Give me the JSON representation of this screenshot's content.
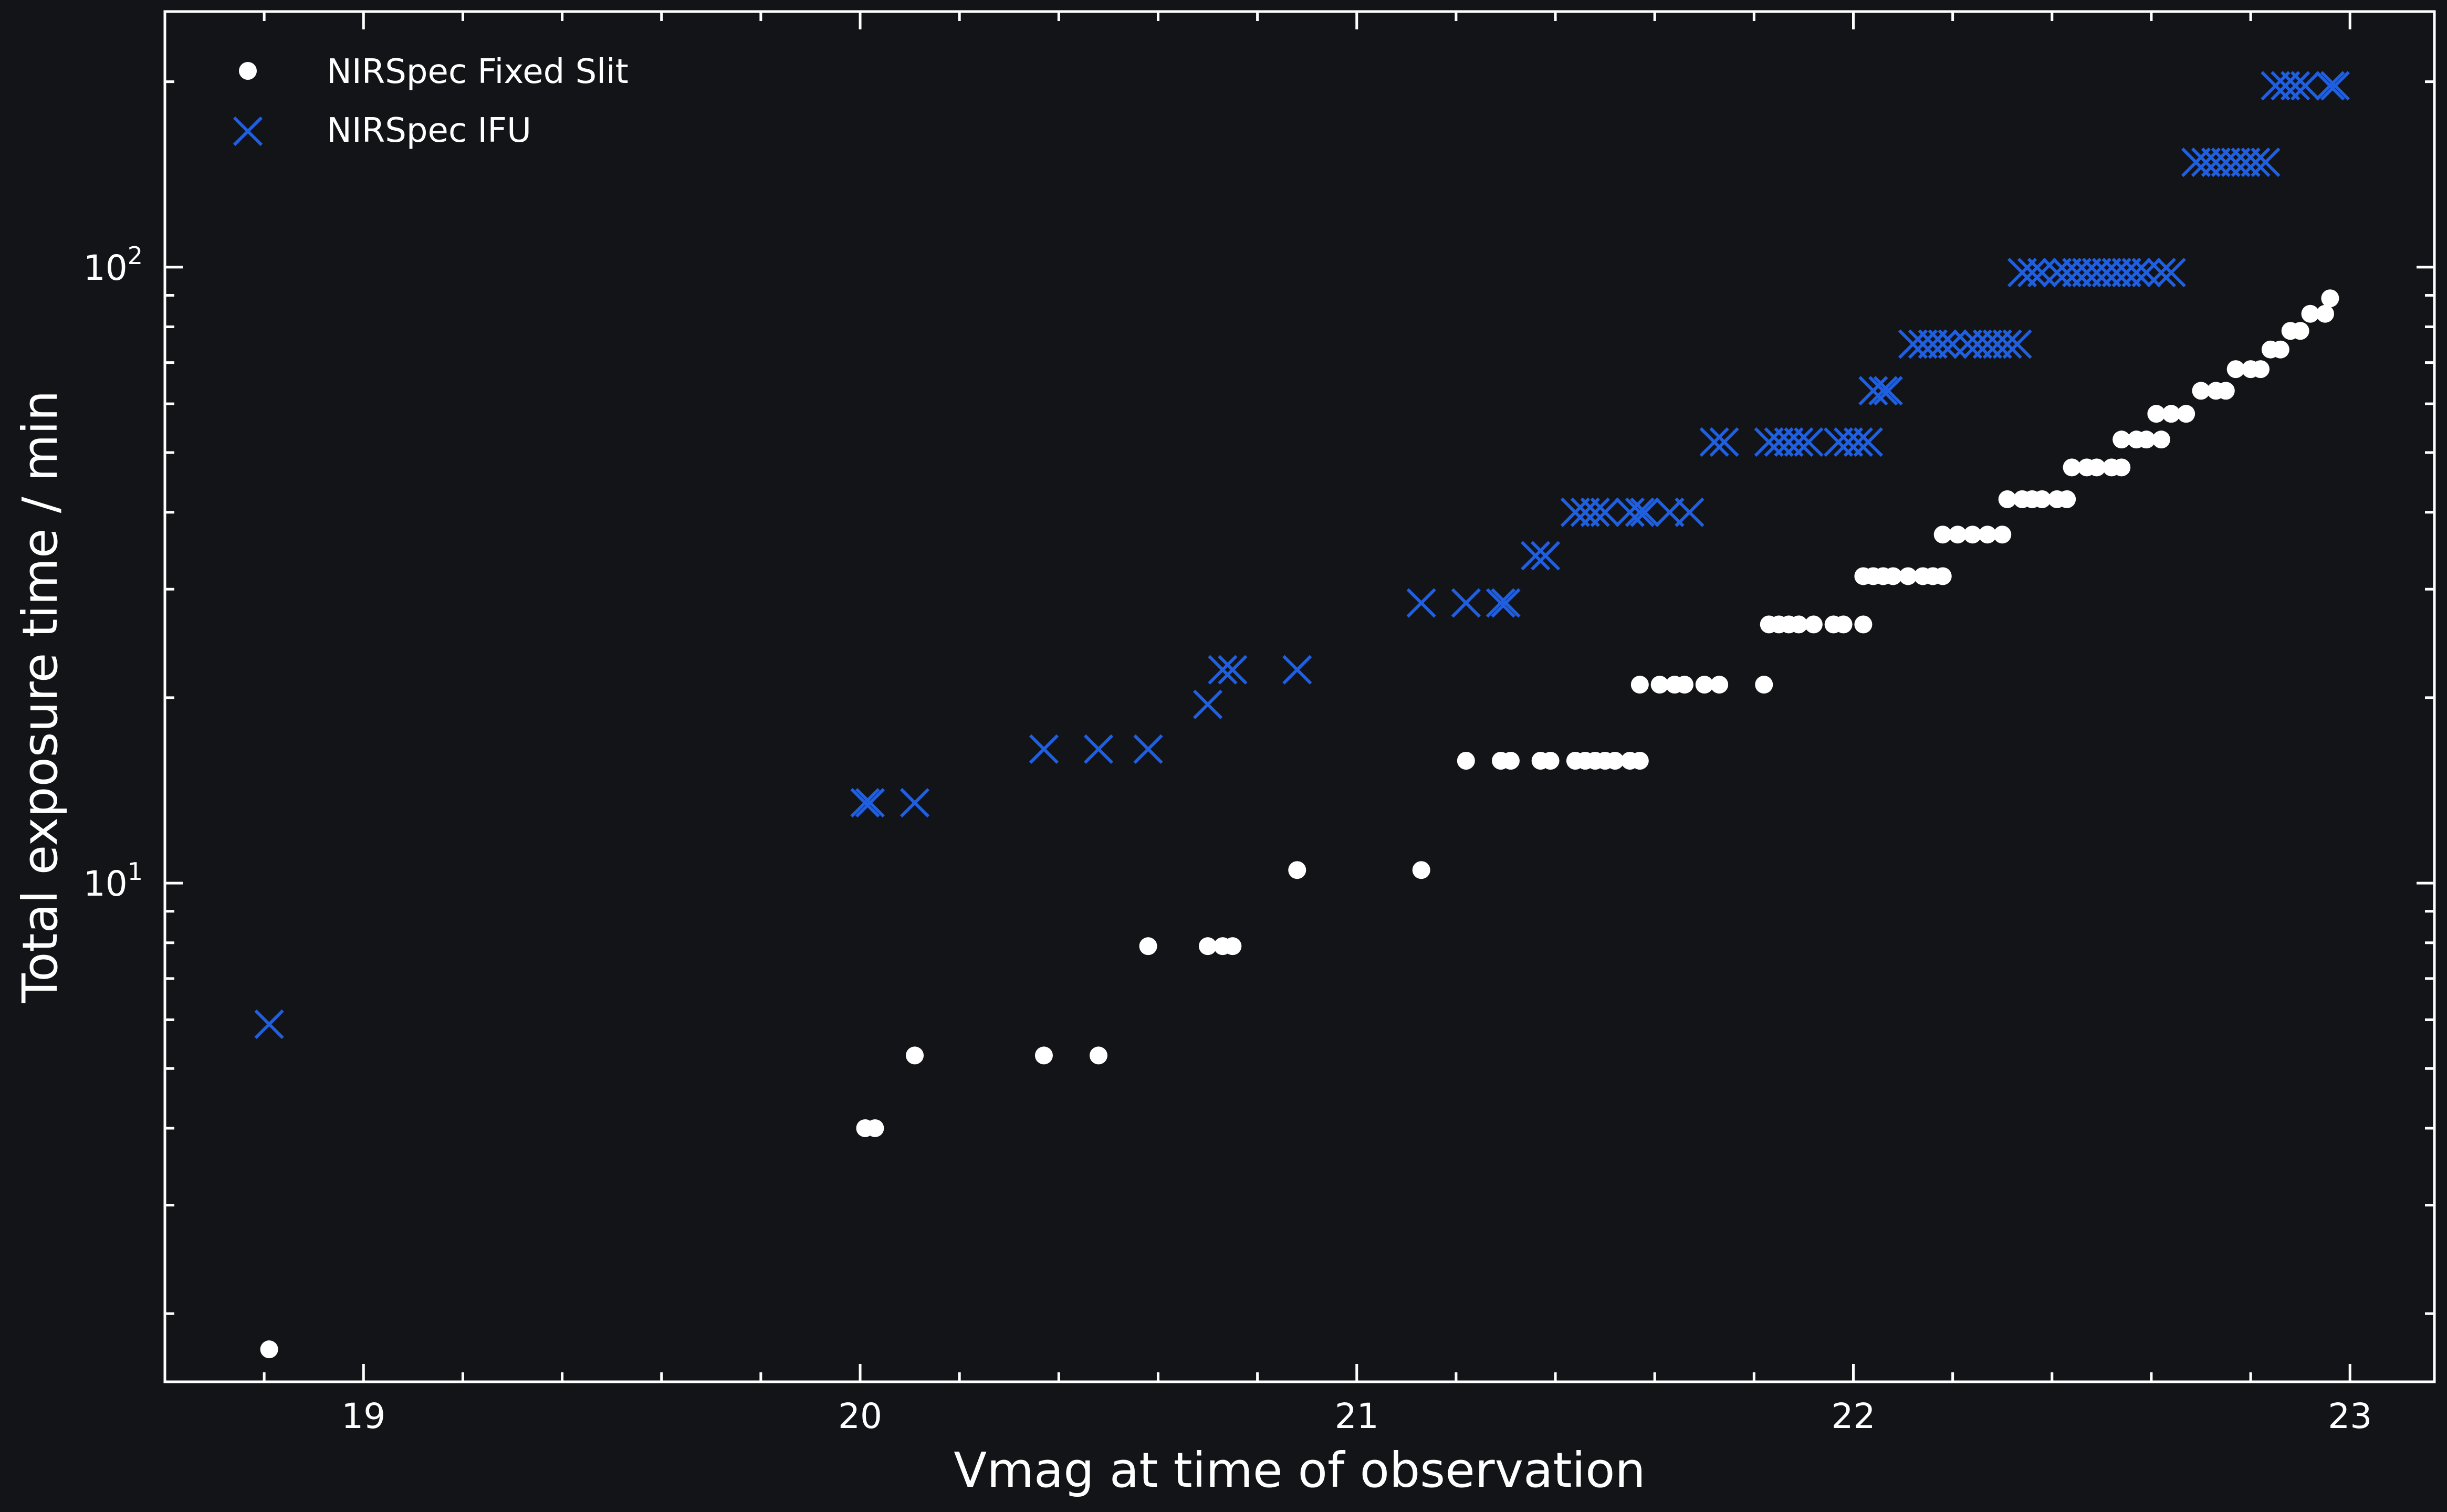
{
  "chart_data": {
    "type": "scatter",
    "title": "",
    "xlabel": "Vmag at time of observation",
    "ylabel": "Total exposure time / min",
    "xlim": [
      18.6,
      23.17
    ],
    "ylim": [
      1.55,
      260
    ],
    "yscale": "log",
    "x_ticks": [
      19,
      20,
      21,
      22,
      23
    ],
    "x_tick_labels": [
      "19",
      "20",
      "21",
      "22",
      "23"
    ],
    "y_ticks": [
      10,
      100
    ],
    "y_tick_labels": [
      {
        "base": "10",
        "exp": "1"
      },
      {
        "base": "10",
        "exp": "2"
      }
    ],
    "grid": false,
    "legend": "top-left",
    "background": "#121417",
    "series": [
      {
        "name": "NIRSpec Fixed Slit",
        "marker": "circle",
        "color": "#ffffff",
        "points": [
          [
            18.81,
            1.75
          ],
          [
            20.01,
            4.0
          ],
          [
            20.03,
            4.0
          ],
          [
            20.11,
            5.25
          ],
          [
            20.37,
            5.25
          ],
          [
            20.48,
            5.25
          ],
          [
            20.58,
            7.9
          ],
          [
            20.7,
            7.9
          ],
          [
            20.73,
            7.9
          ],
          [
            20.75,
            7.9
          ],
          [
            20.88,
            10.5
          ],
          [
            21.13,
            10.5
          ],
          [
            21.22,
            15.8
          ],
          [
            21.29,
            15.8
          ],
          [
            21.31,
            15.8
          ],
          [
            21.37,
            15.8
          ],
          [
            21.39,
            15.8
          ],
          [
            21.44,
            15.8
          ],
          [
            21.46,
            15.8
          ],
          [
            21.48,
            15.8
          ],
          [
            21.5,
            15.8
          ],
          [
            21.52,
            15.8
          ],
          [
            21.55,
            15.8
          ],
          [
            21.57,
            15.8
          ],
          [
            21.57,
            21.0
          ],
          [
            21.61,
            21.0
          ],
          [
            21.64,
            21.0
          ],
          [
            21.66,
            21.0
          ],
          [
            21.7,
            21.0
          ],
          [
            21.73,
            21.0
          ],
          [
            21.82,
            21.0
          ],
          [
            21.83,
            26.3
          ],
          [
            21.85,
            26.3
          ],
          [
            21.87,
            26.3
          ],
          [
            21.89,
            26.3
          ],
          [
            21.92,
            26.3
          ],
          [
            21.96,
            26.3
          ],
          [
            21.98,
            26.3
          ],
          [
            22.02,
            26.3
          ],
          [
            22.02,
            31.5
          ],
          [
            22.04,
            31.5
          ],
          [
            22.06,
            31.5
          ],
          [
            22.08,
            31.5
          ],
          [
            22.11,
            31.5
          ],
          [
            22.14,
            31.5
          ],
          [
            22.16,
            31.5
          ],
          [
            22.18,
            31.5
          ],
          [
            22.18,
            36.8
          ],
          [
            22.21,
            36.8
          ],
          [
            22.24,
            36.8
          ],
          [
            22.27,
            36.8
          ],
          [
            22.3,
            36.8
          ],
          [
            22.31,
            42.0
          ],
          [
            22.34,
            42.0
          ],
          [
            22.36,
            42.0
          ],
          [
            22.38,
            42.0
          ],
          [
            22.41,
            42.0
          ],
          [
            22.43,
            42.0
          ],
          [
            22.44,
            47.3
          ],
          [
            22.47,
            47.3
          ],
          [
            22.49,
            47.3
          ],
          [
            22.52,
            47.3
          ],
          [
            22.54,
            47.3
          ],
          [
            22.54,
            52.5
          ],
          [
            22.57,
            52.5
          ],
          [
            22.59,
            52.5
          ],
          [
            22.62,
            52.5
          ],
          [
            22.61,
            57.8
          ],
          [
            22.64,
            57.8
          ],
          [
            22.67,
            57.8
          ],
          [
            22.7,
            63.0
          ],
          [
            22.73,
            63.0
          ],
          [
            22.75,
            63.0
          ],
          [
            22.77,
            68.3
          ],
          [
            22.8,
            68.3
          ],
          [
            22.82,
            68.3
          ],
          [
            22.84,
            73.5
          ],
          [
            22.86,
            73.5
          ],
          [
            22.88,
            78.8
          ],
          [
            22.9,
            78.8
          ],
          [
            22.92,
            84.0
          ],
          [
            22.95,
            84.0
          ],
          [
            22.96,
            89.0
          ]
        ]
      },
      {
        "name": "NIRSpec IFU",
        "marker": "x",
        "color": "#1f5fe0",
        "points": [
          [
            18.81,
            5.9
          ],
          [
            20.01,
            13.5
          ],
          [
            20.02,
            13.5
          ],
          [
            20.11,
            13.5
          ],
          [
            20.37,
            16.5
          ],
          [
            20.48,
            16.5
          ],
          [
            20.58,
            16.5
          ],
          [
            20.7,
            19.5
          ],
          [
            20.73,
            22.2
          ],
          [
            20.75,
            22.2
          ],
          [
            20.88,
            22.2
          ],
          [
            21.13,
            28.5
          ],
          [
            21.22,
            28.5
          ],
          [
            21.29,
            28.5
          ],
          [
            21.3,
            28.5
          ],
          [
            21.36,
            34.0
          ],
          [
            21.38,
            34.0
          ],
          [
            21.44,
            40.0
          ],
          [
            21.46,
            40.0
          ],
          [
            21.48,
            40.0
          ],
          [
            21.5,
            40.0
          ],
          [
            21.55,
            40.0
          ],
          [
            21.57,
            40.0
          ],
          [
            21.58,
            40.0
          ],
          [
            21.63,
            40.0
          ],
          [
            21.67,
            40.0
          ],
          [
            21.72,
            52.0
          ],
          [
            21.74,
            52.0
          ],
          [
            21.83,
            52.0
          ],
          [
            21.85,
            52.0
          ],
          [
            21.87,
            52.0
          ],
          [
            21.89,
            52.0
          ],
          [
            21.91,
            52.0
          ],
          [
            21.97,
            52.0
          ],
          [
            21.99,
            52.0
          ],
          [
            22.01,
            52.0
          ],
          [
            22.03,
            52.0
          ],
          [
            22.04,
            63.0
          ],
          [
            22.06,
            63.0
          ],
          [
            22.07,
            63.0
          ],
          [
            22.12,
            75.0
          ],
          [
            22.14,
            75.0
          ],
          [
            22.16,
            75.0
          ],
          [
            22.18,
            75.0
          ],
          [
            22.2,
            75.0
          ],
          [
            22.23,
            75.0
          ],
          [
            22.25,
            75.0
          ],
          [
            22.27,
            75.0
          ],
          [
            22.29,
            75.0
          ],
          [
            22.31,
            75.0
          ],
          [
            22.33,
            75.0
          ],
          [
            22.34,
            98.0
          ],
          [
            22.36,
            98.0
          ],
          [
            22.38,
            98.0
          ],
          [
            22.41,
            98.0
          ],
          [
            22.43,
            98.0
          ],
          [
            22.45,
            98.0
          ],
          [
            22.47,
            98.0
          ],
          [
            22.49,
            98.0
          ],
          [
            22.51,
            98.0
          ],
          [
            22.53,
            98.0
          ],
          [
            22.55,
            98.0
          ],
          [
            22.57,
            98.0
          ],
          [
            22.59,
            98.0
          ],
          [
            22.62,
            98.0
          ],
          [
            22.64,
            98.0
          ],
          [
            22.69,
            148.0
          ],
          [
            22.71,
            148.0
          ],
          [
            22.73,
            148.0
          ],
          [
            22.75,
            148.0
          ],
          [
            22.77,
            148.0
          ],
          [
            22.79,
            148.0
          ],
          [
            22.81,
            148.0
          ],
          [
            22.83,
            148.0
          ],
          [
            22.85,
            197.0
          ],
          [
            22.87,
            197.0
          ],
          [
            22.89,
            197.0
          ],
          [
            22.91,
            197.0
          ],
          [
            22.96,
            197.0
          ],
          [
            22.97,
            197.0
          ]
        ]
      }
    ]
  }
}
